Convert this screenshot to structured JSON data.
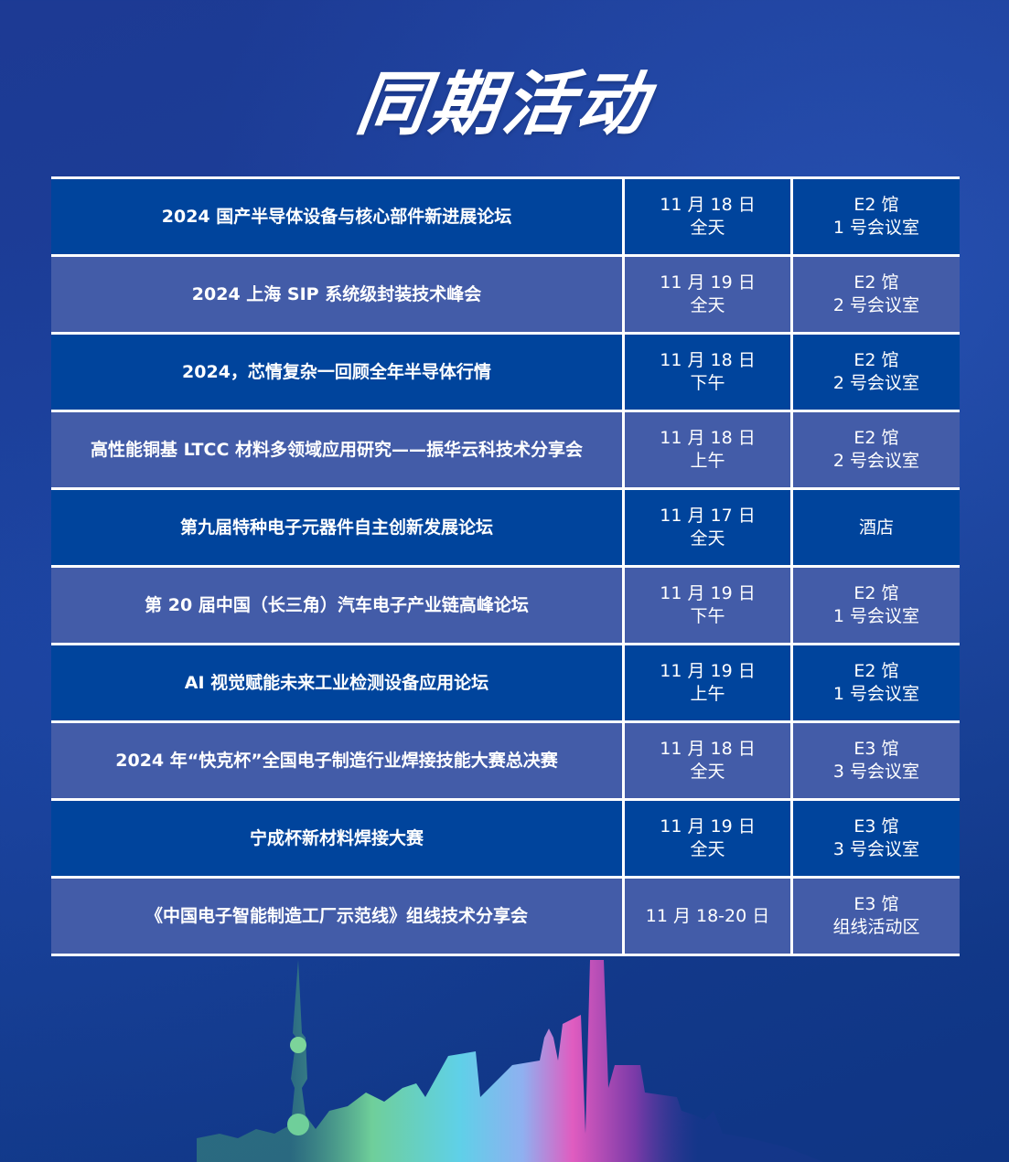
{
  "title": "同期活动",
  "rows": [
    {
      "name": "2024 国产半导体设备与核心部件新进展论坛",
      "date": "11 月 18 日",
      "time": "全天",
      "hall": "E2 馆",
      "room": "1 号会议室"
    },
    {
      "name": "2024 上海 SIP 系统级封装技术峰会",
      "date": "11 月 19 日",
      "time": "全天",
      "hall": "E2 馆",
      "room": "2 号会议室"
    },
    {
      "name": "2024，芯情复杂一回顾全年半导体行情",
      "date": "11 月 18 日",
      "time": "下午",
      "hall": "E2 馆",
      "room": "2 号会议室"
    },
    {
      "name": "高性能铜基 LTCC 材料多领域应用研究——振华云科技术分享会",
      "date": "11 月 18 日",
      "time": "上午",
      "hall": "E2 馆",
      "room": "2 号会议室"
    },
    {
      "name": "第九届特种电子元器件自主创新发展论坛",
      "date": "11 月 17 日",
      "time": "全天",
      "hall": "酒店",
      "room": ""
    },
    {
      "name": "第 20 届中国（长三角）汽车电子产业链高峰论坛",
      "date": "11 月 19 日",
      "time": "下午",
      "hall": "E2 馆",
      "room": "1 号会议室"
    },
    {
      "name": "AI 视觉赋能未来工业检测设备应用论坛",
      "date": "11 月 19 日",
      "time": "上午",
      "hall": "E2 馆",
      "room": "1 号会议室"
    },
    {
      "name": "2024 年“快克杯”全国电子制造行业焊接技能大赛总决赛",
      "date": "11 月 18 日",
      "time": "全天",
      "hall": "E3 馆",
      "room": "3 号会议室"
    },
    {
      "name": "宁成杯新材料焊接大赛",
      "date": "11 月 19 日",
      "time": "全天",
      "hall": "E3 馆",
      "room": "3 号会议室"
    },
    {
      "name": "《中国电子智能制造工厂示范线》组线技术分享会",
      "date": "11 月 18-20 日",
      "time": "",
      "hall": "E3 馆",
      "room": "组线活动区"
    }
  ],
  "colors": {
    "row_dark": "#00449c",
    "row_light": "#435ca8",
    "background": "#1a3f98"
  }
}
